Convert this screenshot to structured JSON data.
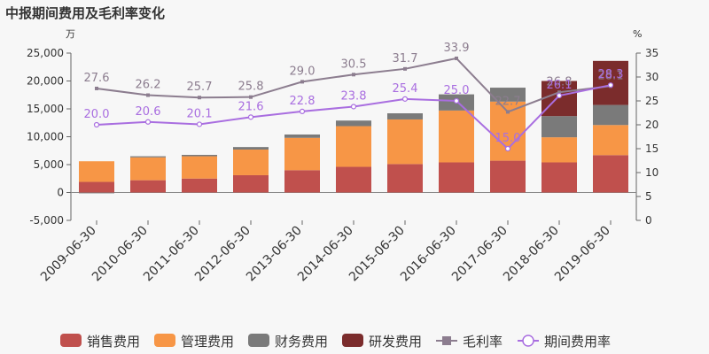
{
  "title": "中报期间费用及毛利率变化",
  "chart_data": {
    "type": "bar",
    "stacked": true,
    "title": "中报期间费用及毛利率变化",
    "categories": [
      "2009-06-30",
      "2010-06-30",
      "2011-06-30",
      "2012-06-30",
      "2013-06-30",
      "2014-06-30",
      "2015-06-30",
      "2016-06-30",
      "2017-06-30",
      "2018-06-30",
      "2019-06-30"
    ],
    "left_axis": {
      "unit": "万",
      "min": -5000,
      "max": 25000,
      "ticks": [
        -5000,
        0,
        5000,
        10000,
        15000,
        20000,
        25000
      ],
      "tick_labels": [
        "-5,000",
        "0",
        "5,000",
        "10,000",
        "15,000",
        "20,000",
        "25,000"
      ]
    },
    "right_axis": {
      "unit": "%",
      "min": 0,
      "max": 35,
      "ticks": [
        0,
        5,
        10,
        15,
        20,
        25,
        30,
        35
      ],
      "tick_labels": [
        "0",
        "5",
        "10",
        "15",
        "20",
        "25",
        "30",
        "35"
      ]
    },
    "series": [
      {
        "name": "销售费用",
        "kind": "bar",
        "color": "#c0504d",
        "values": [
          1900,
          2200,
          2500,
          3100,
          4000,
          4600,
          5100,
          5400,
          5700,
          5400,
          6700
        ]
      },
      {
        "name": "管理费用",
        "kind": "bar",
        "color": "#f79646",
        "values": [
          3700,
          4100,
          4000,
          4600,
          5800,
          7300,
          8000,
          9300,
          10600,
          4500,
          5400
        ]
      },
      {
        "name": "财务费用",
        "kind": "bar",
        "color": "#7a7a7a",
        "values": [
          -150,
          200,
          250,
          450,
          600,
          1000,
          1100,
          2900,
          2500,
          3800,
          3600
        ]
      },
      {
        "name": "研发费用",
        "kind": "bar",
        "color": "#7b2c2c",
        "values": [
          0,
          0,
          0,
          0,
          0,
          0,
          0,
          0,
          0,
          6300,
          7900
        ]
      },
      {
        "name": "毛利率",
        "kind": "line",
        "axis": "right",
        "color": "#8c7d8f",
        "values": [
          27.6,
          26.2,
          25.7,
          25.8,
          29.0,
          30.5,
          31.7,
          33.9,
          22.7,
          26.8,
          28.1
        ],
        "labels": [
          "27.6",
          "26.2",
          "25.7",
          "25.8",
          "29.0",
          "30.5",
          "31.7",
          "33.9",
          "22.7",
          "26.8",
          "28.1"
        ]
      },
      {
        "name": "期间费用率",
        "kind": "line",
        "axis": "right",
        "color": "#a96ee0",
        "values": [
          20.0,
          20.6,
          20.1,
          21.6,
          22.8,
          23.8,
          25.4,
          25.0,
          15.0,
          26.1,
          28.3
        ],
        "labels": [
          "20.0",
          "20.6",
          "20.1",
          "21.6",
          "22.8",
          "23.8",
          "25.4",
          "25.0",
          "15.0",
          "26.1",
          "28.3"
        ]
      }
    ],
    "legend_position": "bottom",
    "grid": false
  }
}
